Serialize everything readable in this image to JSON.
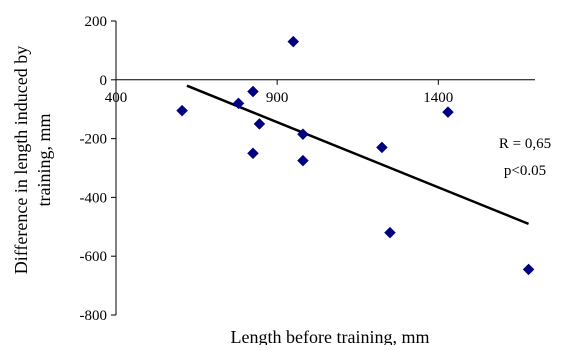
{
  "chart_data": {
    "type": "scatter",
    "title": "",
    "xlabel": "Length before training,  mm",
    "ylabel": "Difference in length induced by training, mm",
    "ylabel_lines": [
      "Difference in length induced by",
      "training, mm"
    ],
    "xlim": [
      400,
      1700
    ],
    "ylim": [
      -800,
      200
    ],
    "x_ticks": [
      400,
      900,
      1400
    ],
    "y_ticks": [
      200,
      0,
      -200,
      -400,
      -600,
      -800
    ],
    "grid": false,
    "legend": "none",
    "series": [
      {
        "marker": "diamond",
        "color": "#000080",
        "points": [
          {
            "x": 605,
            "y": -105
          },
          {
            "x": 780,
            "y": -80
          },
          {
            "x": 825,
            "y": -40
          },
          {
            "x": 825,
            "y": -250
          },
          {
            "x": 845,
            "y": -150
          },
          {
            "x": 950,
            "y": 130
          },
          {
            "x": 980,
            "y": -185
          },
          {
            "x": 980,
            "y": -275
          },
          {
            "x": 1225,
            "y": -230
          },
          {
            "x": 1250,
            "y": -520
          },
          {
            "x": 1430,
            "y": -110
          },
          {
            "x": 1680,
            "y": -645
          }
        ]
      }
    ],
    "trendline": {
      "color": "#000000",
      "x": [
        620,
        1680
      ],
      "y": [
        -20,
        -490
      ]
    },
    "annotations": [
      "R = 0,65",
      "p<0.05"
    ]
  }
}
